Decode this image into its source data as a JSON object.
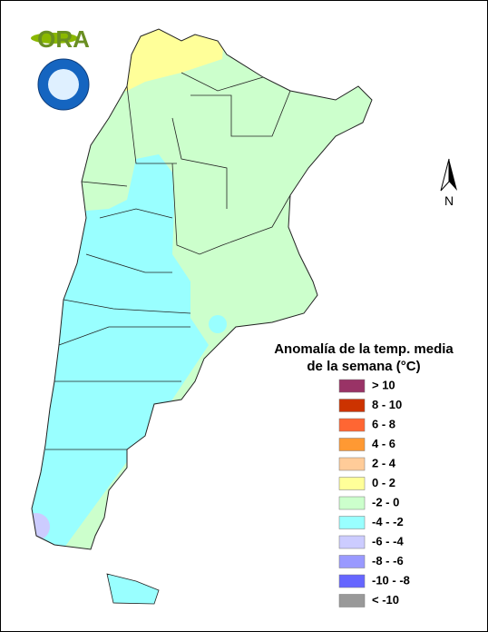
{
  "logo": {
    "text": "ORA"
  },
  "north_label": "N",
  "legend": {
    "title": [
      "Anomalía de la temp. media",
      "de la semana (°C)"
    ],
    "items": [
      {
        "label": "> 10",
        "color": "#993366"
      },
      {
        "label": "8 - 10",
        "color": "#cc3300"
      },
      {
        "label": "6 - 8",
        "color": "#ff6633"
      },
      {
        "label": "4 - 6",
        "color": "#ff9933"
      },
      {
        "label": "2 - 4",
        "color": "#ffcc99"
      },
      {
        "label": "0 - 2",
        "color": "#ffff99"
      },
      {
        "label": "-2 - 0",
        "color": "#ccffcc"
      },
      {
        "label": "-4 - -2",
        "color": "#99ffff"
      },
      {
        "label": "-6 - -4",
        "color": "#ccccff"
      },
      {
        "label": "-8 - -6",
        "color": "#9999ff"
      },
      {
        "label": "-10 - -8",
        "color": "#6666ff"
      },
      {
        "label": "< -10",
        "color": "#999999"
      }
    ]
  }
}
